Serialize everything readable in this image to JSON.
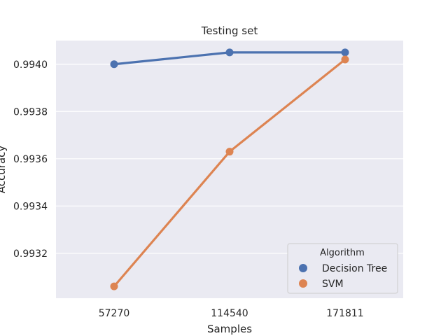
{
  "chart_data": {
    "type": "line",
    "title": "Testing set",
    "xlabel": "Samples",
    "ylabel": "Accuracy",
    "categories": [
      "57270",
      "114540",
      "171811"
    ],
    "yticks": [
      "0.9932",
      "0.9934",
      "0.9936",
      "0.9938",
      "0.9940"
    ],
    "ylim": [
      0.99301,
      0.9941
    ],
    "grid": true,
    "legend": {
      "title": "Algorithm",
      "placement": "lower-right"
    },
    "series": [
      {
        "name": "Decision Tree",
        "color": "#4c72b0",
        "values": [
          0.994,
          0.99405,
          0.99405
        ]
      },
      {
        "name": "SVM",
        "color": "#dd8452",
        "values": [
          0.99306,
          0.99363,
          0.99402
        ]
      }
    ]
  }
}
